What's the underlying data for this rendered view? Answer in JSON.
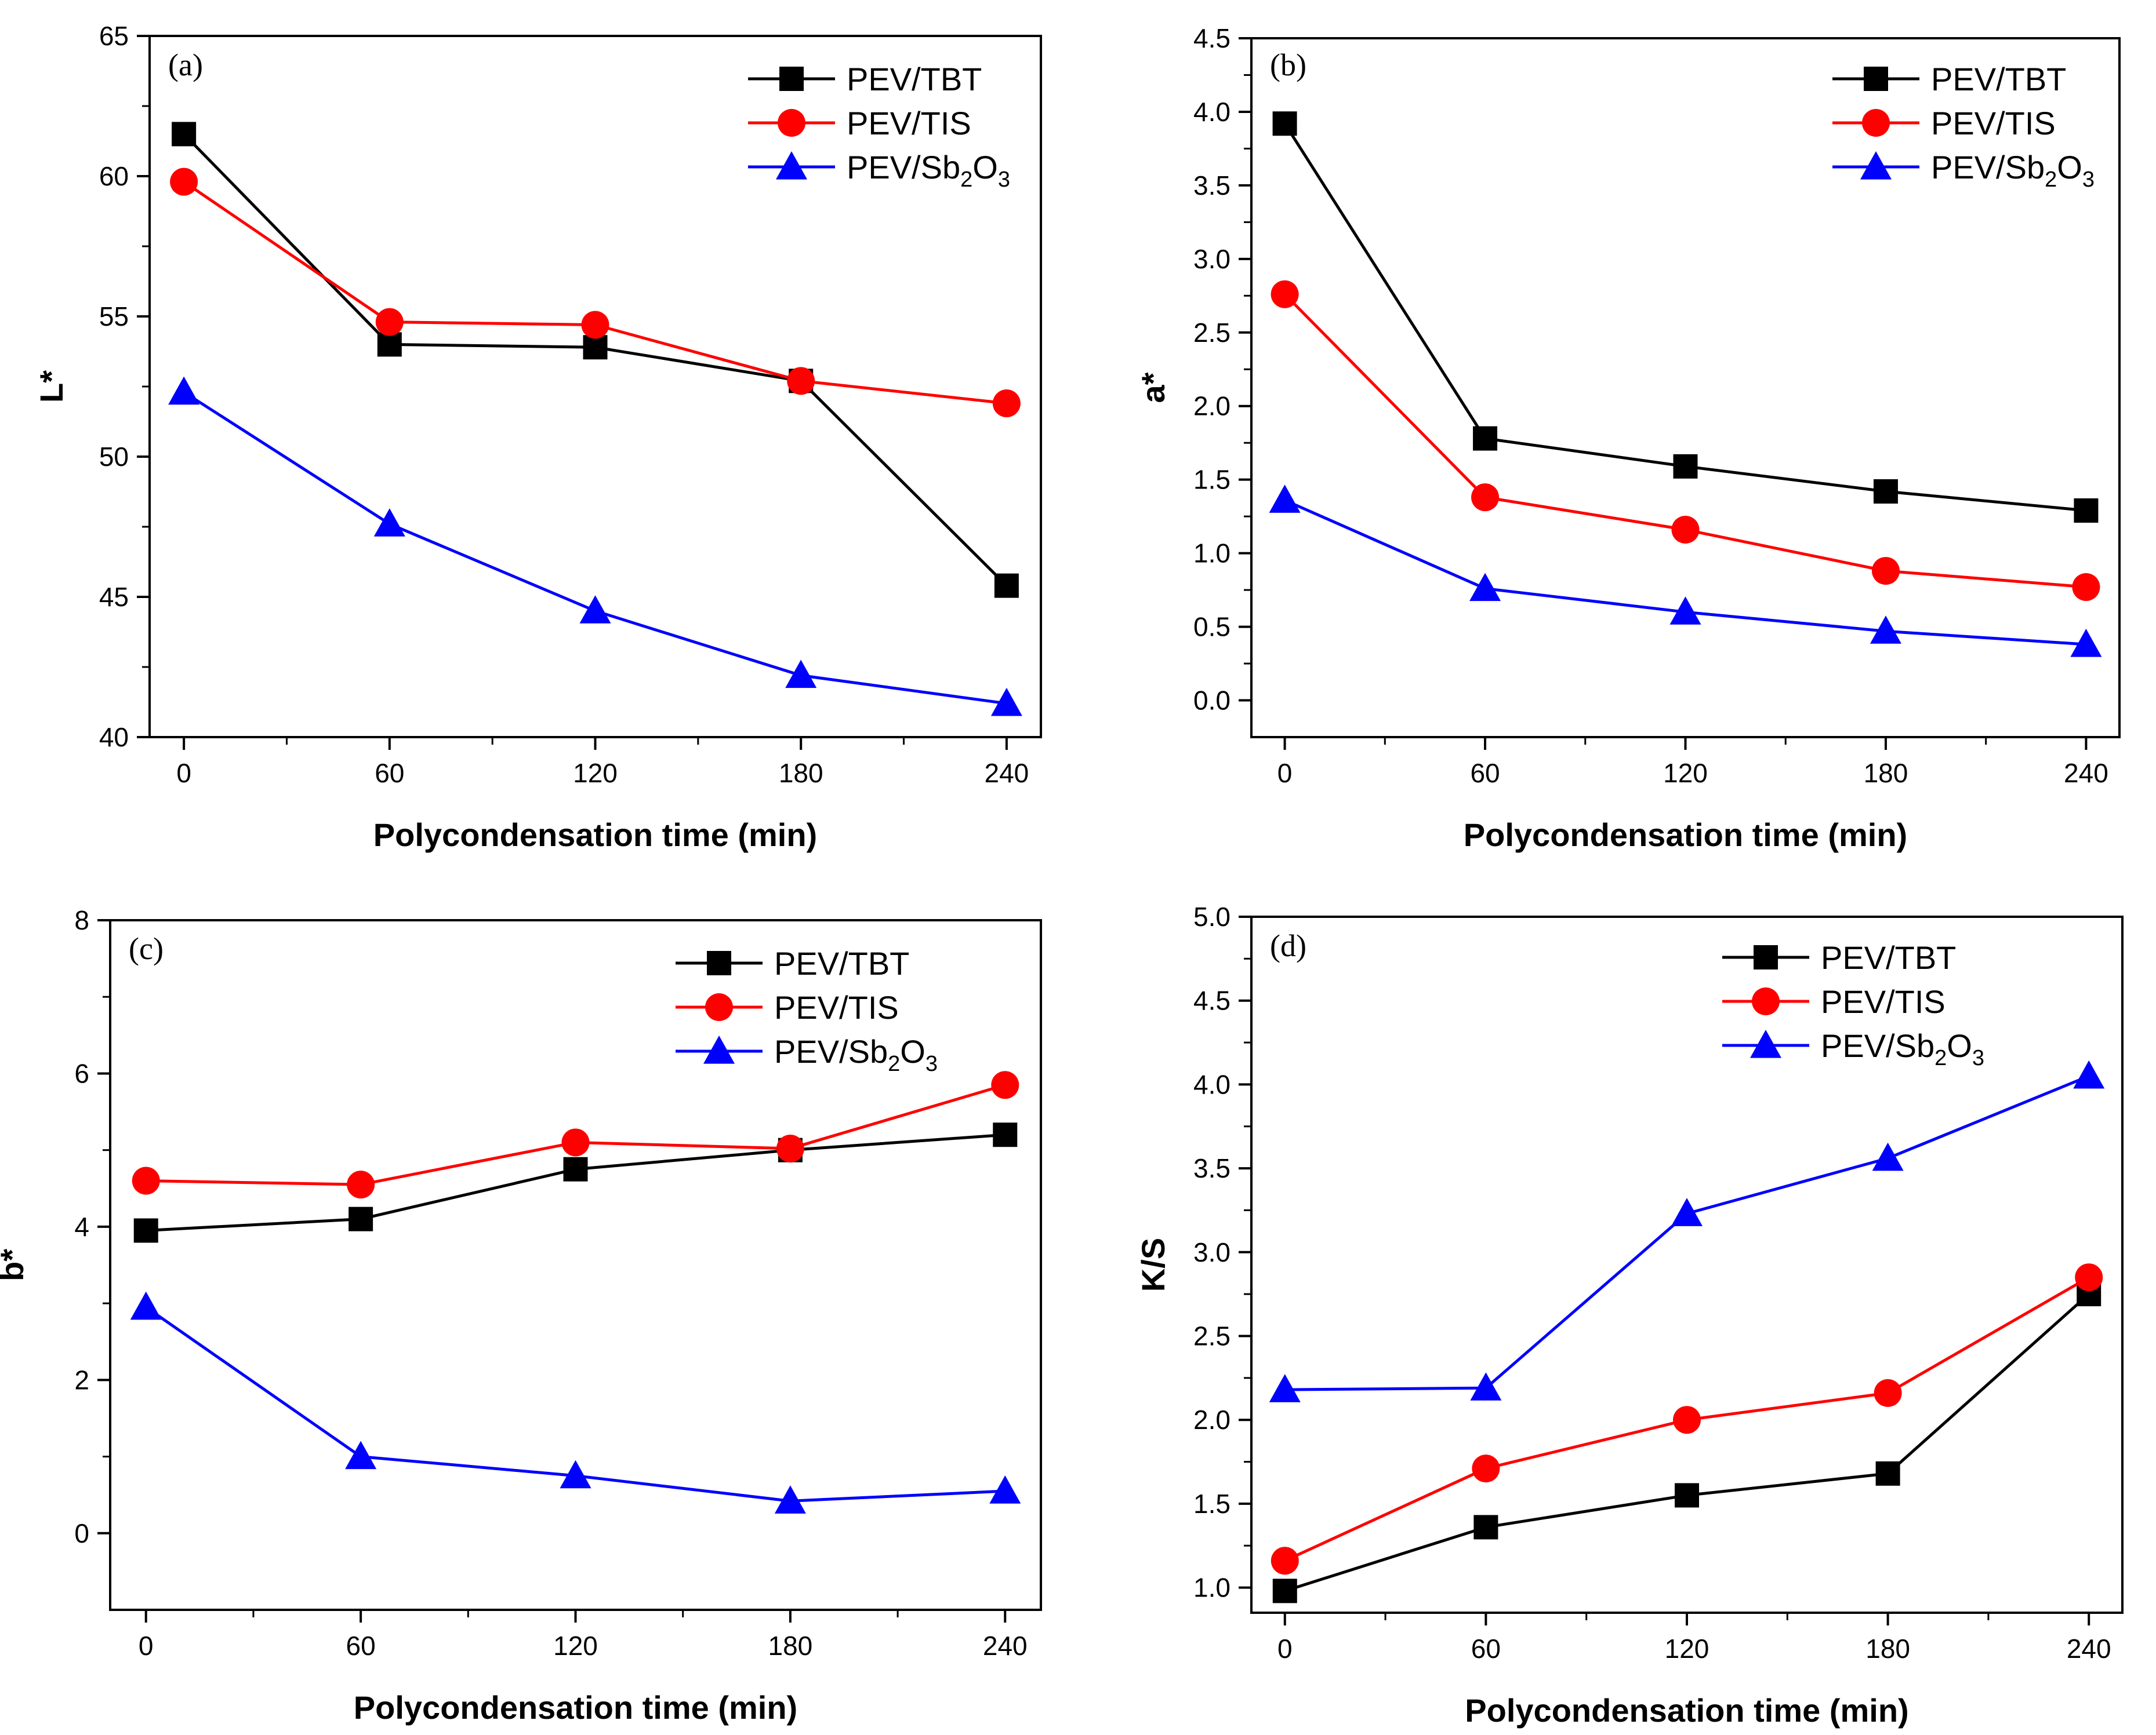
{
  "chart_data": [
    {
      "type": "line",
      "panel_label": "(a)",
      "xlabel": "Polycondensation time (min)",
      "ylabel": "L*",
      "x": [
        0,
        60,
        120,
        180,
        240
      ],
      "xlim": [
        -10,
        250
      ],
      "ylim": [
        40,
        65
      ],
      "xticks": [
        0,
        60,
        120,
        180,
        240
      ],
      "yticks": [
        40,
        45,
        50,
        55,
        60,
        65
      ],
      "ytick_decimals": 0,
      "legend_position": "top-right",
      "series": [
        {
          "name": "PEV/TBT",
          "color": "#000000",
          "marker": "square",
          "values": [
            61.5,
            54.0,
            53.9,
            52.7,
            45.4
          ]
        },
        {
          "name": "PEV/TIS",
          "color": "#ff0000",
          "marker": "circle",
          "values": [
            59.8,
            54.8,
            54.7,
            52.7,
            51.9
          ]
        },
        {
          "name": "PEV/Sb2O3",
          "color": "#0000ff",
          "marker": "triangle",
          "values": [
            52.3,
            47.6,
            44.5,
            42.2,
            41.2
          ],
          "label_parts": [
            "PEV/Sb",
            "2",
            "O",
            "3"
          ]
        }
      ]
    },
    {
      "type": "line",
      "panel_label": "(b)",
      "xlabel": "Polycondensation time (min)",
      "ylabel": "a*",
      "x": [
        0,
        60,
        120,
        180,
        240
      ],
      "xlim": [
        -10,
        250
      ],
      "ylim": [
        -0.25,
        4.5
      ],
      "xticks": [
        0,
        60,
        120,
        180,
        240
      ],
      "yticks": [
        0.0,
        0.5,
        1.0,
        1.5,
        2.0,
        2.5,
        3.0,
        3.5,
        4.0,
        4.5
      ],
      "ytick_decimals": 1,
      "legend_position": "top-right",
      "series": [
        {
          "name": "PEV/TBT",
          "color": "#000000",
          "marker": "square",
          "values": [
            3.92,
            1.78,
            1.59,
            1.42,
            1.29
          ]
        },
        {
          "name": "PEV/TIS",
          "color": "#ff0000",
          "marker": "circle",
          "values": [
            2.76,
            1.38,
            1.16,
            0.88,
            0.77
          ]
        },
        {
          "name": "PEV/Sb2O3",
          "color": "#0000ff",
          "marker": "triangle",
          "values": [
            1.36,
            0.76,
            0.6,
            0.47,
            0.38
          ],
          "label_parts": [
            "PEV/Sb",
            "2",
            "O",
            "3"
          ]
        }
      ]
    },
    {
      "type": "line",
      "panel_label": "(c)",
      "xlabel": "Polycondensation time (min)",
      "ylabel": "b*",
      "x": [
        0,
        60,
        120,
        180,
        240
      ],
      "xlim": [
        -10,
        250
      ],
      "ylim": [
        -1,
        8
      ],
      "xticks": [
        0,
        60,
        120,
        180,
        240
      ],
      "yticks": [
        0,
        2,
        4,
        6,
        8
      ],
      "ytick_decimals": 0,
      "legend_position": "top-right",
      "series": [
        {
          "name": "PEV/TBT",
          "color": "#000000",
          "marker": "square",
          "values": [
            3.95,
            4.1,
            4.75,
            5.0,
            5.2
          ]
        },
        {
          "name": "PEV/TIS",
          "color": "#ff0000",
          "marker": "circle",
          "values": [
            4.6,
            4.55,
            5.1,
            5.02,
            5.85
          ]
        },
        {
          "name": "PEV/Sb2O3",
          "color": "#0000ff",
          "marker": "triangle",
          "values": [
            2.95,
            1.0,
            0.75,
            0.42,
            0.55
          ],
          "label_parts": [
            "PEV/Sb",
            "2",
            "O",
            "3"
          ]
        }
      ]
    },
    {
      "type": "line",
      "panel_label": "(d)",
      "xlabel": "Polycondensation time (min)",
      "ylabel": "K/S",
      "x": [
        0,
        60,
        120,
        180,
        240
      ],
      "xlim": [
        -10,
        250
      ],
      "ylim": [
        0.85,
        5.0
      ],
      "xticks": [
        0,
        60,
        120,
        180,
        240
      ],
      "yticks": [
        1.0,
        1.5,
        2.0,
        2.5,
        3.0,
        3.5,
        4.0,
        4.5,
        5.0
      ],
      "ytick_decimals": 1,
      "legend_position": "top-right",
      "series": [
        {
          "name": "PEV/TBT",
          "color": "#000000",
          "marker": "square",
          "values": [
            0.98,
            1.36,
            1.55,
            1.68,
            2.75
          ]
        },
        {
          "name": "PEV/TIS",
          "color": "#ff0000",
          "marker": "circle",
          "values": [
            1.16,
            1.71,
            2.0,
            2.16,
            2.85
          ]
        },
        {
          "name": "PEV/Sb2O3",
          "color": "#0000ff",
          "marker": "triangle",
          "values": [
            2.18,
            2.19,
            3.23,
            3.56,
            4.05
          ],
          "label_parts": [
            "PEV/Sb",
            "2",
            "O",
            "3"
          ]
        }
      ]
    }
  ]
}
